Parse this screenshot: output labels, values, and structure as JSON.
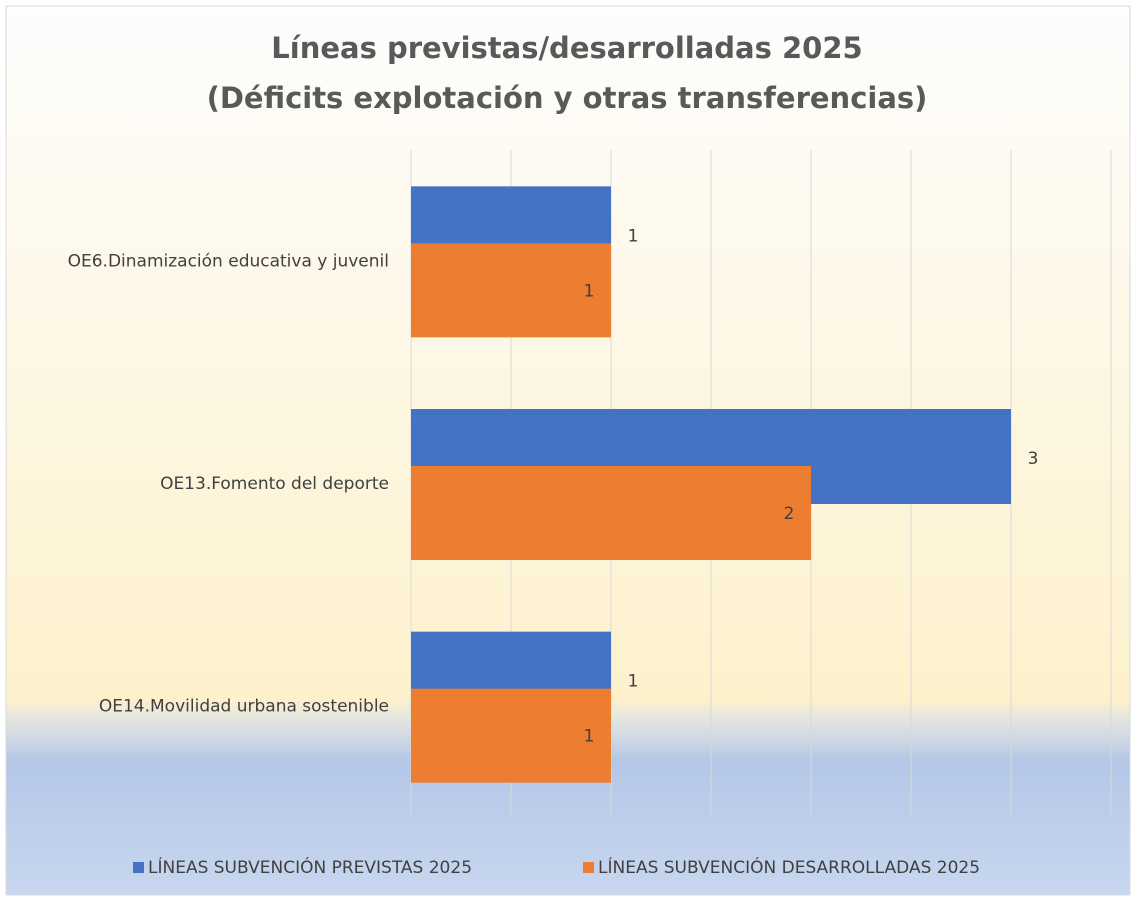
{
  "chart_data": {
    "type": "bar",
    "orientation": "horizontal",
    "title": [
      "Líneas previstas/desarrolladas 2025",
      "(Déficits explotación y otras transferencias)"
    ],
    "categories": [
      "OE6.Dinamización educativa y juvenil",
      "OE13.Fomento del deporte",
      "OE14.Movilidad urbana sostenible"
    ],
    "series": [
      {
        "name": "LÍNEAS SUBVENCIÓN PREVISTAS 2025",
        "color": "#4472c4",
        "values": [
          1,
          3,
          1
        ]
      },
      {
        "name": "LÍNEAS SUBVENCIÓN DESARROLLADAS 2025",
        "color": "#ed7d31",
        "values": [
          1,
          2,
          1
        ]
      }
    ],
    "xlim": [
      0,
      3.5
    ],
    "xticks": [
      0,
      0.5,
      1,
      1.5,
      2,
      2.5,
      3,
      3.5
    ],
    "grid": true,
    "legend": "bottom"
  }
}
